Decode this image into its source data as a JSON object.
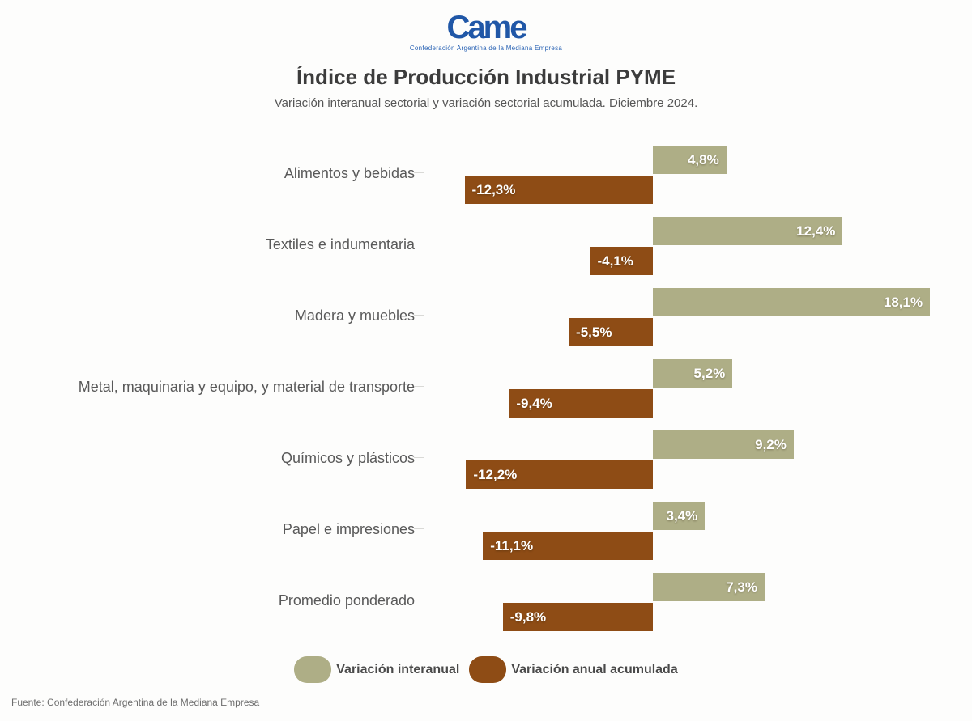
{
  "logo": {
    "text": "Came",
    "subtext": "Confederación Argentina de la Mediana Empresa",
    "color": "#2057a7"
  },
  "chart_data": {
    "type": "bar",
    "orientation": "horizontal",
    "title": "Índice de Producción Industrial PYME",
    "subtitle": "Variación interanual sectorial y variación sectorial acumulada. Diciembre 2024.",
    "categories": [
      "Alimentos y bebidas",
      "Textiles e indumentaria",
      "Madera y muebles",
      "Metal, maquinaria y equipo, y material de transporte",
      "Químicos y plásticos",
      "Papel e impresiones",
      "Promedio ponderado"
    ],
    "series": [
      {
        "name": "Variación interanual",
        "color": "#aeae86",
        "values": [
          4.8,
          12.4,
          18.1,
          5.2,
          9.2,
          3.4,
          7.3
        ],
        "labels": [
          "4,8%",
          "12,4%",
          "18,1%",
          "5,2%",
          "9,2%",
          "3,4%",
          "7,3%"
        ]
      },
      {
        "name": "Variación anual acumulada",
        "color": "#8e4c15",
        "values": [
          -12.3,
          -4.1,
          -5.5,
          -9.4,
          -12.2,
          -11.1,
          -9.8
        ],
        "labels": [
          "-12,3%",
          "-4,1%",
          "-5,5%",
          "-9,4%",
          "-12,2%",
          "-11,1%",
          "-9,8%"
        ]
      }
    ],
    "xlim": [
      -15,
      20
    ],
    "value_labels_position": "inside",
    "legend_position": "bottom",
    "grid": false
  },
  "footer": {
    "source": "Fuente: Confederación Argentina de la Mediana Empresa"
  }
}
